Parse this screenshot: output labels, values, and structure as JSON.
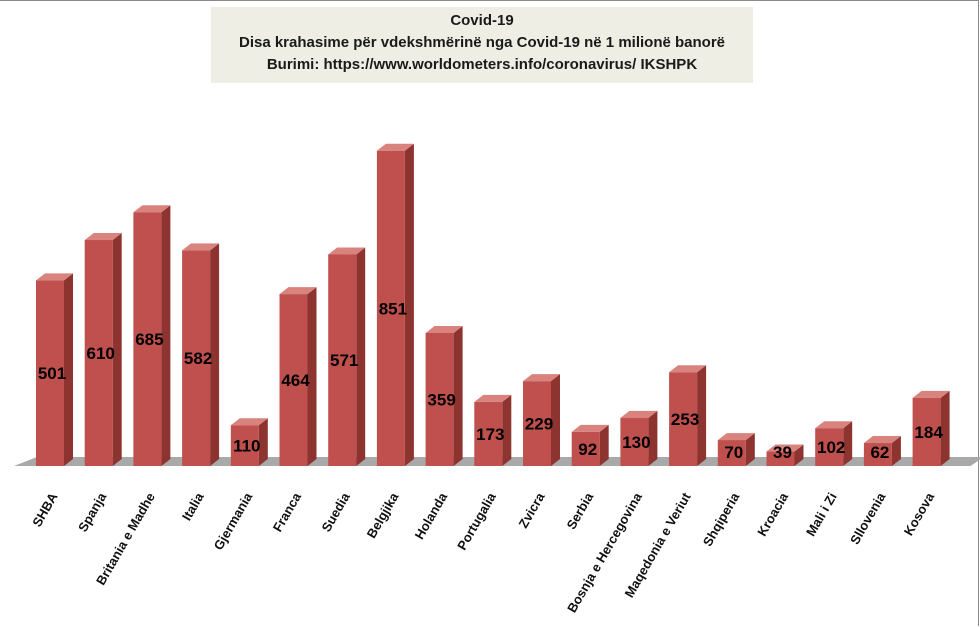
{
  "chart_data": {
    "type": "bar",
    "title": "Covid-19",
    "subtitle": "Disa krahasime për vdekshmërinë nga Covid-19 në 1 milionë banorë",
    "source": "Burimi: https://www.worldometers.info/coronavirus/ IKSHPK",
    "categories": [
      "SHBA",
      "Spanja",
      "Britania e Madhe",
      "Italia",
      "Gjermania",
      "Franca",
      "Suedia",
      "Belgjika",
      "Holanda",
      "Portugalia",
      "Zvicra",
      "Serbia",
      "Bosnja e Hercegovina",
      "Maqedonia e Veriut",
      "Shqiperia",
      "Kroacia",
      "Mali i Zi",
      "Sllovenia",
      "Kosova"
    ],
    "values": [
      501,
      610,
      685,
      582,
      110,
      464,
      571,
      851,
      359,
      173,
      229,
      92,
      130,
      253,
      70,
      39,
      102,
      62,
      184
    ],
    "xlabel": "",
    "ylabel": "",
    "ylim": [
      0,
      880
    ],
    "grid": false,
    "legend": "none",
    "colors": {
      "bar_front": "#c0504d",
      "bar_side": "#8e3430",
      "bar_top": "#d9837f",
      "floor": "#a9a9a9"
    }
  }
}
